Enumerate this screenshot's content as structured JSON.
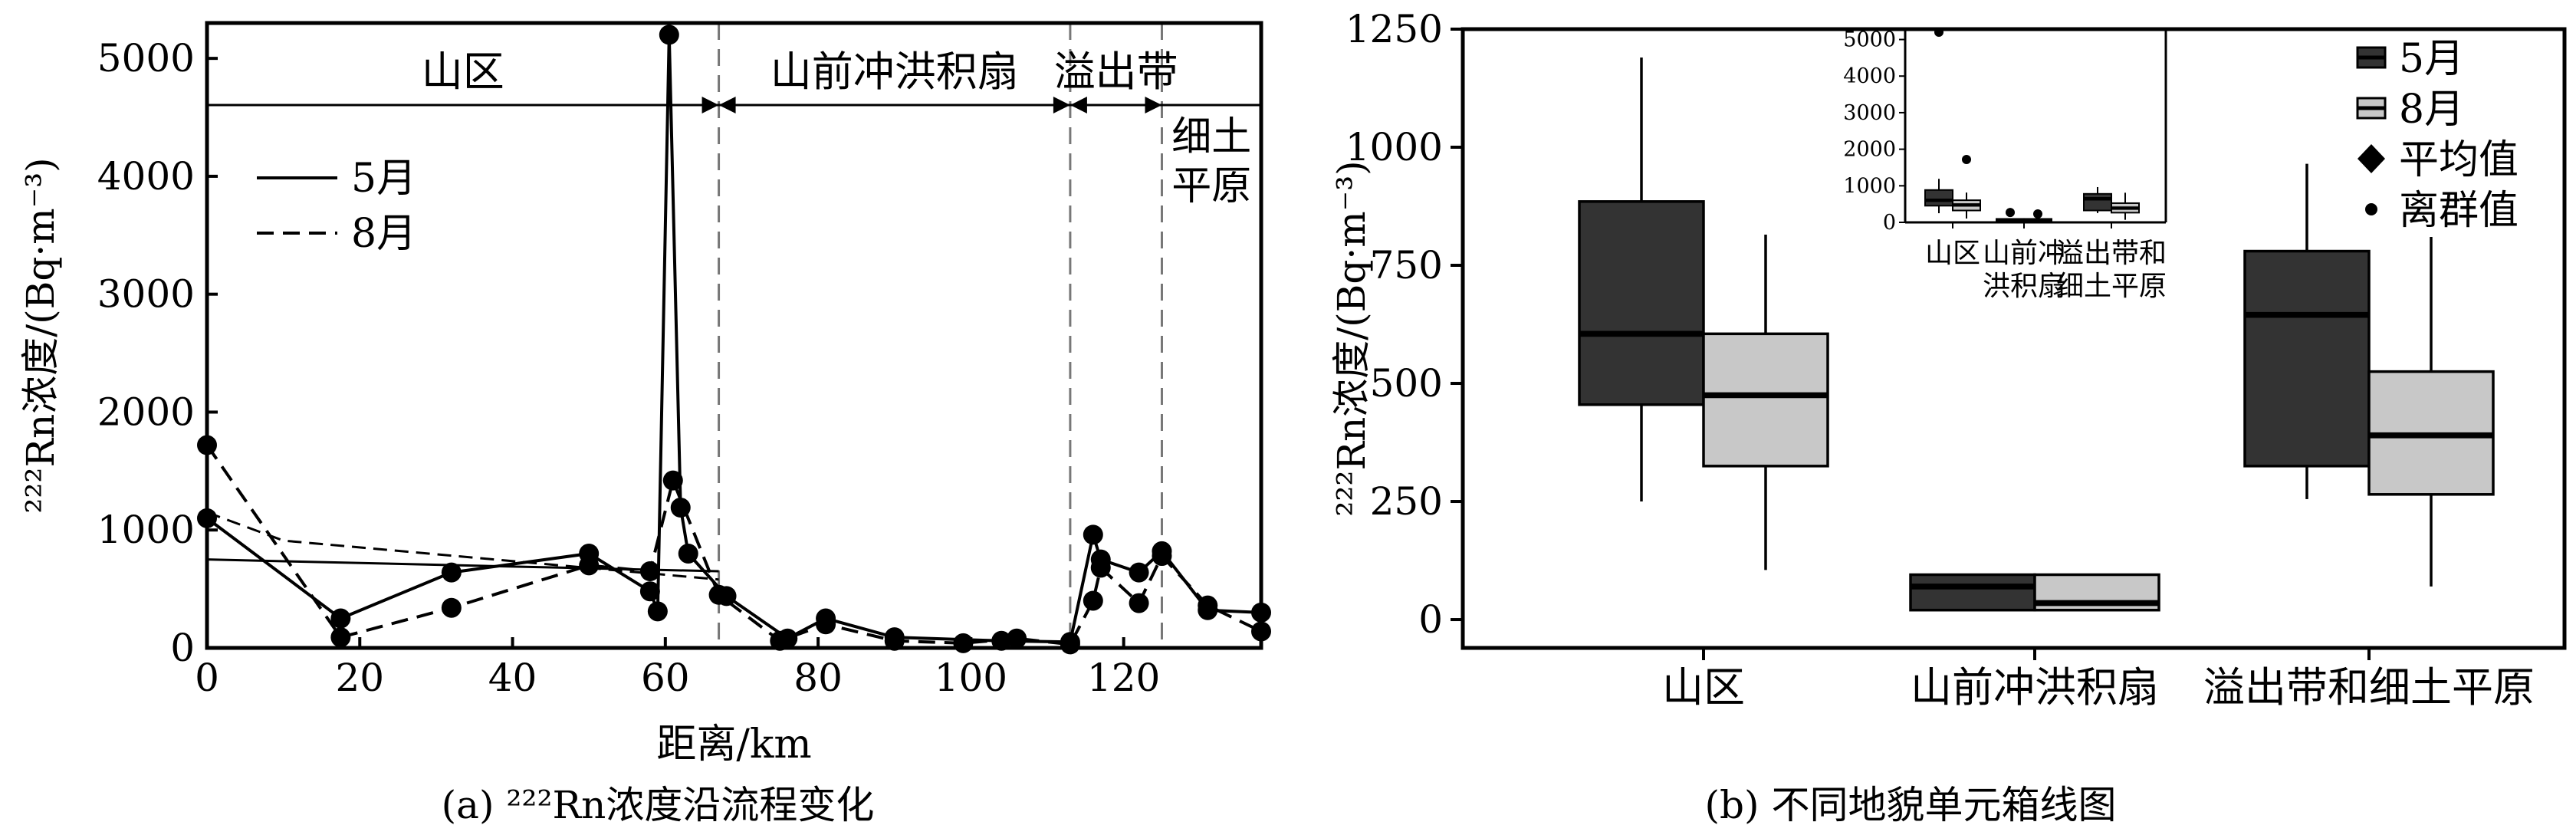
{
  "chart_data": [
    {
      "type": "line",
      "panel_caption": "(a) ²²²Rn浓度沿流程变化",
      "xlabel": "距离/km",
      "ylabel": "²²²Rn浓度/(Bq·m⁻³)",
      "xlim": [
        0,
        138
      ],
      "ylim": [
        0,
        5300
      ],
      "xticks": [
        0,
        20,
        40,
        60,
        80,
        100,
        120
      ],
      "yticks": [
        0,
        1000,
        2000,
        3000,
        4000,
        5000
      ],
      "regions": [
        {
          "label": "山区",
          "start": 0,
          "end": 67
        },
        {
          "label": "山前冲洪积扇",
          "start": 67,
          "end": 113
        },
        {
          "label": "溢出带",
          "start": 113,
          "end": 125
        },
        {
          "label": "细土",
          "label2": "平原",
          "start": 125,
          "end": 138
        }
      ],
      "legend": [
        {
          "name": "5月",
          "style": "solid"
        },
        {
          "name": "8月",
          "style": "dashed"
        }
      ],
      "series": [
        {
          "name": "5月",
          "style": "solid",
          "x": [
            0,
            17.5,
            32,
            50,
            58,
            59,
            60.5,
            62,
            63,
            68,
            76,
            81,
            90,
            104,
            113,
            116,
            117,
            122,
            125,
            131,
            138
          ],
          "y": [
            1100,
            250,
            640,
            800,
            480,
            310,
            5200,
            1190,
            800,
            440,
            80,
            250,
            90,
            60,
            50,
            960,
            750,
            640,
            820,
            320,
            300
          ]
        },
        {
          "name": "8月",
          "style": "dashed",
          "x": [
            0,
            17.5,
            32,
            50,
            58,
            61,
            67,
            75,
            81,
            90,
            99,
            106,
            113,
            116,
            117,
            122,
            125,
            131,
            138
          ],
          "y": [
            1720,
            90,
            340,
            700,
            650,
            1420,
            450,
            60,
            200,
            60,
            40,
            80,
            30,
            400,
            680,
            380,
            780,
            360,
            140
          ]
        }
      ],
      "trend_lines": [
        {
          "style": "solid",
          "points": [
            [
              0,
              750
            ],
            [
              67,
              650
            ]
          ]
        },
        {
          "style": "dashed",
          "points": [
            [
              0,
              1150
            ],
            [
              10,
              910
            ],
            [
              67,
              580
            ]
          ]
        }
      ]
    },
    {
      "type": "box",
      "panel_caption": "(b) 不同地貌单元箱线图",
      "ylabel": "²²²Rn浓度/(Bq·m⁻³)",
      "ylim": [
        -60,
        1250
      ],
      "yticks": [
        0,
        250,
        500,
        750,
        1000,
        1250
      ],
      "categories": [
        "山区",
        "山前冲洪积扇",
        "溢出带和细土平原"
      ],
      "legend": [
        {
          "name": "5月",
          "symbol": "box-dark"
        },
        {
          "name": "8月",
          "symbol": "box-light"
        },
        {
          "name": "平均值",
          "symbol": "diamond"
        },
        {
          "name": "离群值",
          "symbol": "dot"
        }
      ],
      "series": [
        {
          "name": "5月",
          "color": "#333333",
          "boxes": [
            {
              "min": 250,
              "q1": 455,
              "median": 605,
              "q3": 885,
              "max": 1190
            },
            {
              "min": 20,
              "q1": 20,
              "median": 70,
              "q3": 95,
              "max": 95
            },
            {
              "min": 255,
              "q1": 325,
              "median": 645,
              "q3": 780,
              "max": 965
            }
          ]
        },
        {
          "name": "8月",
          "color": "#c8c8c8",
          "boxes": [
            {
              "min": 105,
              "q1": 325,
              "median": 475,
              "q3": 605,
              "max": 815
            },
            {
              "min": 20,
              "q1": 20,
              "median": 35,
              "q3": 95,
              "max": 95
            },
            {
              "min": 70,
              "q1": 265,
              "median": 390,
              "q3": 525,
              "max": 810
            }
          ]
        }
      ],
      "inset": {
        "ylim": [
          0,
          5200
        ],
        "yticks": [
          0,
          1000,
          2000,
          3000,
          4000,
          5000
        ],
        "categories": [
          {
            "line1": "山区",
            "line2": ""
          },
          {
            "line1": "山前冲",
            "line2": "洪积扇"
          },
          {
            "line1": "溢出带和",
            "line2": "细土平原"
          }
        ],
        "series": [
          {
            "name": "5月",
            "color": "#333333",
            "boxes": [
              {
                "min": 250,
                "q1": 455,
                "median": 605,
                "q3": 885,
                "max": 1190
              },
              {
                "min": 20,
                "q1": 20,
                "median": 70,
                "q3": 95,
                "max": 95
              },
              {
                "min": 255,
                "q1": 325,
                "median": 645,
                "q3": 780,
                "max": 965
              }
            ],
            "outliers": [
              [
                0,
                5200
              ],
              [
                1,
                270
              ]
            ]
          },
          {
            "name": "8月",
            "color": "#c8c8c8",
            "boxes": [
              {
                "min": 105,
                "q1": 325,
                "median": 475,
                "q3": 605,
                "max": 815
              },
              {
                "min": 20,
                "q1": 20,
                "median": 35,
                "q3": 95,
                "max": 95
              },
              {
                "min": 70,
                "q1": 265,
                "median": 390,
                "q3": 525,
                "max": 810
              }
            ],
            "outliers": [
              [
                0,
                1720
              ],
              [
                1,
                230
              ]
            ]
          }
        ]
      }
    }
  ]
}
